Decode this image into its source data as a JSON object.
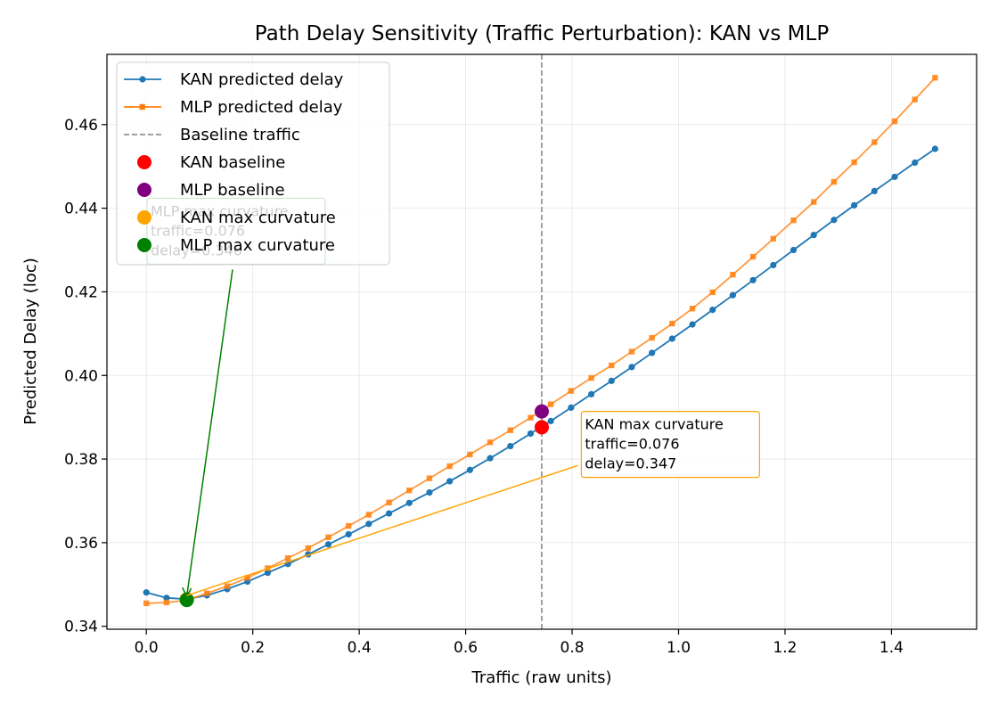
{
  "chart_data": {
    "type": "line",
    "title": "Path Delay Sensitivity (Traffic Perturbation): KAN vs MLP",
    "xlabel": "Traffic (raw units)",
    "ylabel": "Predicted Delay (loc)",
    "xlim": [
      -0.074,
      1.56
    ],
    "ylim": [
      0.3393,
      0.4768
    ],
    "xticks": [
      0.0,
      0.2,
      0.4,
      0.6,
      0.8,
      1.0,
      1.2,
      1.4
    ],
    "xtick_labels": [
      "0.0",
      "0.2",
      "0.4",
      "0.6",
      "0.8",
      "1.0",
      "1.2",
      "1.4"
    ],
    "yticks": [
      0.34,
      0.36,
      0.38,
      0.4,
      0.42,
      0.44,
      0.46
    ],
    "ytick_labels": [
      "0.34",
      "0.36",
      "0.38",
      "0.40",
      "0.42",
      "0.44",
      "0.46"
    ],
    "grid": true,
    "legend_position": "top-left",
    "x": [
      0.0,
      0.038,
      0.076,
      0.114,
      0.152,
      0.19,
      0.228,
      0.266,
      0.304,
      0.342,
      0.38,
      0.418,
      0.456,
      0.494,
      0.532,
      0.57,
      0.608,
      0.646,
      0.684,
      0.722,
      0.76,
      0.798,
      0.836,
      0.874,
      0.912,
      0.95,
      0.988,
      1.026,
      1.064,
      1.102,
      1.14,
      1.178,
      1.216,
      1.254,
      1.292,
      1.33,
      1.368,
      1.406,
      1.444,
      1.482
    ],
    "series": [
      {
        "name": "KAN predicted delay",
        "color": "#1f77b4",
        "marker": "circle",
        "values": [
          0.3481,
          0.3468,
          0.3465,
          0.3474,
          0.3489,
          0.3507,
          0.3528,
          0.3549,
          0.3572,
          0.3596,
          0.362,
          0.3645,
          0.367,
          0.3695,
          0.372,
          0.3747,
          0.3774,
          0.3802,
          0.3831,
          0.3861,
          0.3891,
          0.3923,
          0.3955,
          0.3987,
          0.402,
          0.4054,
          0.4088,
          0.4122,
          0.4157,
          0.4192,
          0.4228,
          0.4264,
          0.43,
          0.4336,
          0.4372,
          0.4407,
          0.4441,
          0.4475,
          0.4509,
          0.4542
        ]
      },
      {
        "name": "MLP predicted delay",
        "color": "#ff7f0e",
        "marker": "square",
        "values": [
          0.3455,
          0.3457,
          0.3462,
          0.3479,
          0.3496,
          0.3516,
          0.3539,
          0.3563,
          0.3587,
          0.3613,
          0.364,
          0.3667,
          0.3696,
          0.3725,
          0.3754,
          0.3783,
          0.3811,
          0.384,
          0.3869,
          0.3899,
          0.3931,
          0.3963,
          0.3994,
          0.4024,
          0.4057,
          0.409,
          0.4124,
          0.416,
          0.4199,
          0.4241,
          0.4284,
          0.4327,
          0.4371,
          0.4415,
          0.4463,
          0.451,
          0.4558,
          0.4608,
          0.466,
          0.4712
        ]
      }
    ],
    "baseline": {
      "name": "Baseline traffic",
      "x": 0.743,
      "color": "#808080"
    },
    "points": [
      {
        "name": "KAN baseline",
        "x": 0.743,
        "y": 0.3876,
        "color": "#ff0000"
      },
      {
        "name": "MLP baseline",
        "x": 0.743,
        "y": 0.3914,
        "color": "#800080"
      },
      {
        "name": "KAN max curvature",
        "x": 0.076,
        "y": 0.3465,
        "color": "#ffa500"
      },
      {
        "name": "MLP max curvature",
        "x": 0.076,
        "y": 0.3463,
        "color": "#008000"
      }
    ],
    "annotations": [
      {
        "lines": [
          "MLP max curvature",
          "traffic=0.076",
          "delay=0.346"
        ],
        "text_x": 0.008,
        "text_y": 0.4345,
        "target_x": 0.076,
        "target_y": 0.3463,
        "color": "#008000"
      },
      {
        "lines": [
          "KAN max curvature",
          "traffic=0.076",
          "delay=0.347"
        ],
        "text_x": 0.824,
        "text_y": 0.3835,
        "target_x": 0.076,
        "target_y": 0.3465,
        "color": "#ffa500"
      }
    ]
  }
}
